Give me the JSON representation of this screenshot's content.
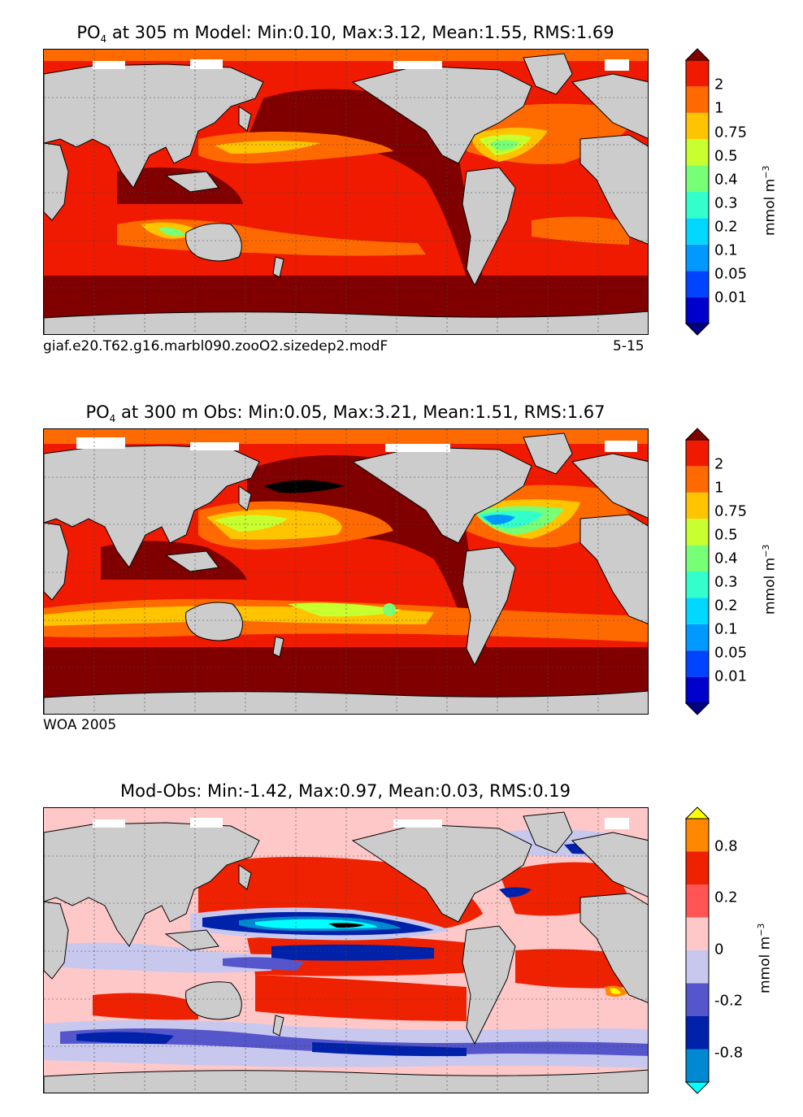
{
  "chart_data": [
    {
      "type": "heatmap",
      "title_prefix": "PO",
      "title_sub": "4",
      "title_rest": " at 305 m Model: Min:0.10, Max:3.12, Mean:1.55, RMS:1.69",
      "caption_left": "giaf.e20.T62.g16.marbl090.zooO2.sizedep2.modF",
      "caption_right": "5-15",
      "colorbar": {
        "levels": [
          "2",
          "1",
          "0.75",
          "0.5",
          "0.4",
          "0.3",
          "0.2",
          "0.1",
          "0.05",
          "0.01"
        ],
        "colors": [
          "#000080",
          "#0000cd",
          "#0044ff",
          "#0099ff",
          "#00d8ff",
          "#33ffcc",
          "#77ff77",
          "#c8ff2e",
          "#ffc400",
          "#ff6a00",
          "#f01a00",
          "#800000"
        ],
        "unit": "mmol m",
        "unit_sup": "−3"
      }
    },
    {
      "type": "heatmap",
      "title_prefix": "PO",
      "title_sub": "4",
      "title_rest": " at 300 m Obs: Min:0.05, Max:3.21, Mean:1.51, RMS:1.67",
      "caption_left": "WOA 2005",
      "colorbar": {
        "levels": [
          "2",
          "1",
          "0.75",
          "0.5",
          "0.4",
          "0.3",
          "0.2",
          "0.1",
          "0.05",
          "0.01"
        ],
        "colors": [
          "#000080",
          "#0000cd",
          "#0044ff",
          "#0099ff",
          "#00d8ff",
          "#33ffcc",
          "#77ff77",
          "#c8ff2e",
          "#ffc400",
          "#ff6a00",
          "#f01a00",
          "#800000"
        ],
        "unit": "mmol m",
        "unit_sup": "−3"
      }
    },
    {
      "type": "heatmap",
      "title": "Mod-Obs: Min:-1.42, Max:0.97, Mean:0.03, RMS:0.19",
      "colorbar": {
        "levels": [
          "0.8",
          "0.2",
          "0",
          "-0.2",
          "-0.8"
        ],
        "colors": [
          "#00ffff",
          "#0088d0",
          "#0022aa",
          "#5555cc",
          "#c8c8ee",
          "#ffc8c8",
          "#ff5555",
          "#ee2200",
          "#ff8800",
          "#ffff00"
        ],
        "unit": "mmol m",
        "unit_sup": "−3"
      }
    }
  ]
}
